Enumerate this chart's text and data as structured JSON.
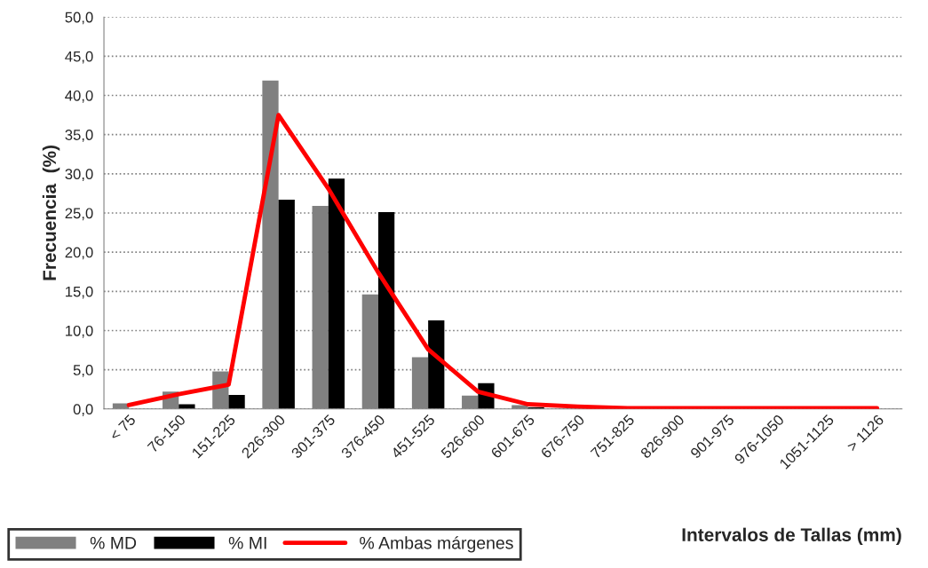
{
  "chart_data": {
    "type": "bar",
    "xlabel": "Intervalos de Tallas (mm)",
    "ylabel": "Frecuencia  (%)",
    "categories": [
      "< 75",
      "76-150",
      "151-225",
      "226-300",
      "301-375",
      "376-450",
      "451-525",
      "526-600",
      "601-675",
      "676-750",
      "751-825",
      "826-900",
      "901-975",
      "976-1050",
      "1051-1125",
      "> 1126"
    ],
    "series": [
      {
        "name": "% MD",
        "color": "#808080",
        "values": [
          0.7,
          2.2,
          4.8,
          41.9,
          25.9,
          14.6,
          6.6,
          1.7,
          0.5,
          0,
          0,
          0,
          0,
          0,
          0,
          0
        ]
      },
      {
        "name": "% MI",
        "color": "#000000",
        "values": [
          0,
          0.6,
          1.8,
          26.7,
          29.4,
          25.1,
          11.3,
          3.3,
          0.2,
          0,
          0,
          0,
          0,
          0,
          0,
          0
        ]
      },
      {
        "name": "% Ambas márgenes",
        "type": "line",
        "color": "#ff0000",
        "values": [
          0.5,
          1.9,
          3.1,
          37.5,
          28.1,
          17.4,
          7.6,
          2.2,
          0.6,
          0.3,
          0.1,
          0.1,
          0.1,
          0.1,
          0.1,
          0.1
        ]
      }
    ],
    "ylim": [
      0,
      50
    ],
    "yticks": [
      {
        "value": 0,
        "label": "0,0"
      },
      {
        "value": 5,
        "label": "5,0"
      },
      {
        "value": 10,
        "label": "10,0"
      },
      {
        "value": 15,
        "label": "15,0"
      },
      {
        "value": 20,
        "label": "20,0"
      },
      {
        "value": 25,
        "label": "25,0"
      },
      {
        "value": 30,
        "label": "30,0"
      },
      {
        "value": 35,
        "label": "35,0"
      },
      {
        "value": 40,
        "label": "40,0"
      },
      {
        "value": 45,
        "label": "45,0"
      },
      {
        "value": 50,
        "label": "50,0"
      }
    ],
    "grid": "y",
    "legend": "bottom left",
    "line_style": "solid"
  }
}
